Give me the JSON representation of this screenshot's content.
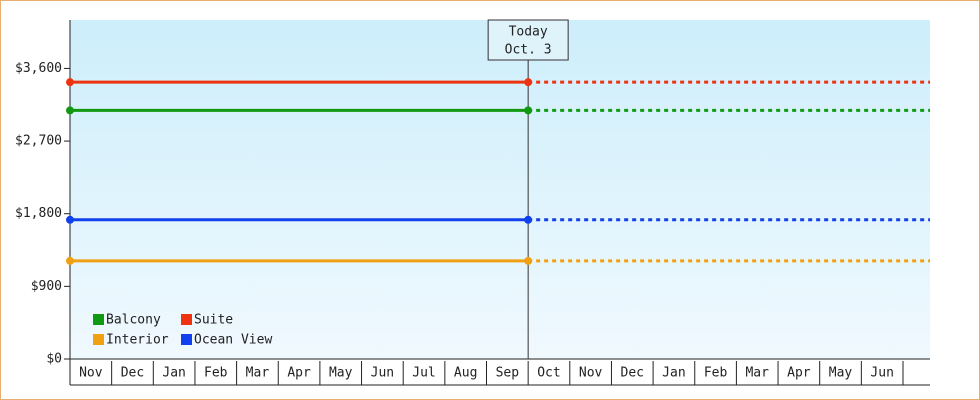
{
  "chart_data": {
    "type": "line",
    "categories": [
      "Nov",
      "Dec",
      "Jan",
      "Feb",
      "Mar",
      "Apr",
      "May",
      "Jun",
      "Jul",
      "Aug",
      "Sep",
      "Oct",
      "Nov",
      "Dec",
      "Jan",
      "Feb",
      "Mar",
      "Apr",
      "May",
      "Jun"
    ],
    "series": [
      {
        "name": "Balcony",
        "color": "#119911",
        "value": 3080
      },
      {
        "name": "Suite",
        "color": "#ee3311",
        "value": 3430
      },
      {
        "name": "Interior",
        "color": "#f0a010",
        "value": 1215
      },
      {
        "name": "Ocean View",
        "color": "#1140ee",
        "value": 1725
      }
    ],
    "annotation": {
      "title": "Today",
      "date": "Oct. 3"
    },
    "ylim": [
      0,
      4200
    ],
    "yticks": [
      {
        "value": 0,
        "label": "$0"
      },
      {
        "value": 900,
        "label": "$900"
      },
      {
        "value": 1800,
        "label": "$1,800"
      },
      {
        "value": 2700,
        "label": "$2,700"
      },
      {
        "value": 3600,
        "label": "$3,600"
      }
    ]
  }
}
